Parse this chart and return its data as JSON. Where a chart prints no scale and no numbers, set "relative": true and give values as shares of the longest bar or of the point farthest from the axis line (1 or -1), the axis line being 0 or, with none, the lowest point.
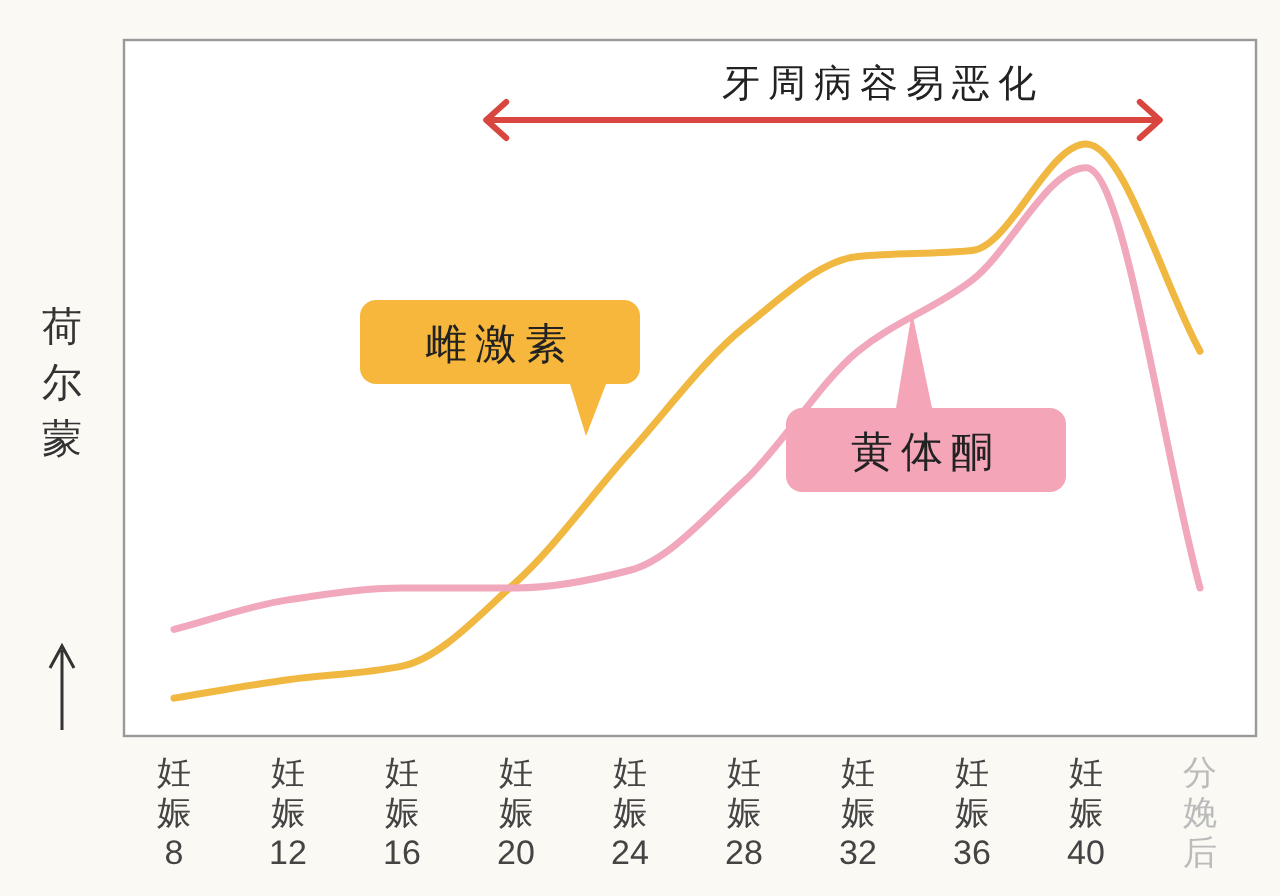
{
  "chart_data": {
    "type": "line",
    "relative": true,
    "ylabel": "荷尔蒙",
    "categories": [
      "妊娠8",
      "妊娠12",
      "妊娠16",
      "妊娠20",
      "妊娠24",
      "妊娠28",
      "妊娠32",
      "妊娠36",
      "妊娠40",
      "分娩后"
    ],
    "series": [
      {
        "name": "雌激素",
        "color": "#f0b840",
        "values": [
          0.064,
          0.095,
          0.118,
          0.26,
          0.48,
          0.69,
          0.81,
          0.82,
          1.0,
          0.65
        ]
      },
      {
        "name": "黄体酮",
        "color": "#f2a8bc",
        "values": [
          0.18,
          0.23,
          0.25,
          0.25,
          0.28,
          0.43,
          0.65,
          0.77,
          0.96,
          0.25
        ]
      }
    ],
    "annotations": [
      "牙周病容易恶化"
    ],
    "grid": false,
    "legend": "center"
  }
}
